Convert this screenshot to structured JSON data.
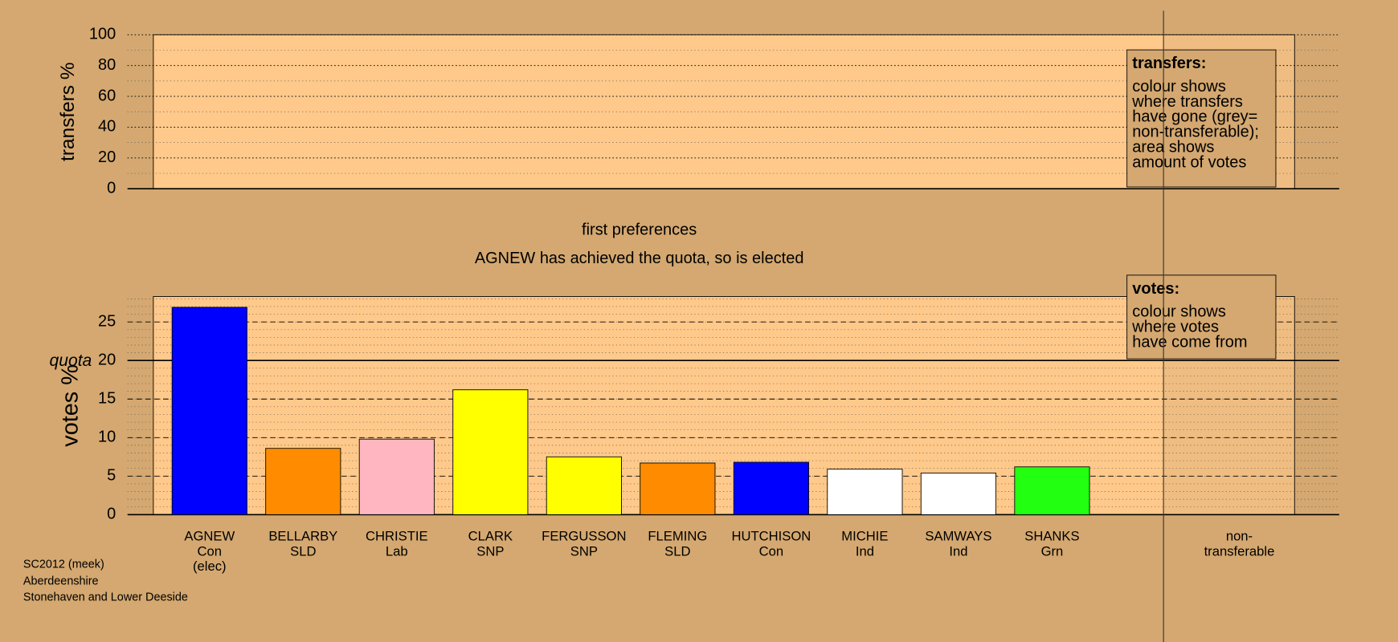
{
  "chart_data": [
    {
      "type": "bar",
      "ylabel": "transfers %",
      "ylim": [
        0,
        100
      ],
      "yticks": [
        0,
        20,
        40,
        60,
        80,
        100
      ],
      "grid": true,
      "grid_style": "dotted",
      "minor_gridstep": 10,
      "legend": {
        "title": "transfers:",
        "paragraphs": [
          [
            "colour shows",
            "where transfers",
            "have gone (grey=",
            "non-transferable);"
          ],
          [
            "area shows",
            "amount of votes"
          ]
        ]
      }
    },
    {
      "type": "bar",
      "title": "first preferences",
      "subtitle": "AGNEW has achieved the quota, so is elected",
      "ylabel": "votes %",
      "categories": [
        "AGNEW",
        "BELLARBY",
        "CHRISTIE",
        "CLARK",
        "FERGUSSON",
        "FLEMING",
        "HUTCHISON",
        "MICHIE",
        "SAMWAYS",
        "SHANKS",
        null,
        "non-"
      ],
      "parties": [
        "Con",
        "SLD",
        "Lab",
        "SNP",
        "SNP",
        "SLD",
        "Con",
        "Ind",
        "Ind",
        "Grn",
        null,
        "transferable"
      ],
      "annotations": [
        "(elec)",
        null,
        null,
        null,
        null,
        null,
        null,
        null,
        null,
        null,
        null,
        null
      ],
      "values": [
        26.9,
        8.6,
        9.8,
        16.2,
        7.5,
        6.7,
        6.8,
        5.9,
        5.4,
        6.2,
        null,
        null
      ],
      "colors": [
        "#0000ff",
        "#ff8c00",
        "#ffb6c1",
        "#ffff00",
        "#ffff00",
        "#ff8c00",
        "#0000ff",
        "#ffffff",
        "#ffffff",
        "#22ff11",
        null,
        null
      ],
      "ylim": [
        0,
        28.3
      ],
      "yticks": [
        0,
        5,
        10,
        15,
        20,
        25
      ],
      "grid": true,
      "grid_style": "dashed",
      "minor_gridstep": 1,
      "quota": {
        "label": "quota",
        "value": 20
      },
      "legend": {
        "title": "votes:",
        "paragraphs": [
          [
            "colour shows",
            "where votes",
            "have come from"
          ]
        ]
      }
    }
  ],
  "footer": [
    "SC2012 (meek)",
    "Aberdeenshire",
    "Stonehaven and Lower Deeside"
  ]
}
